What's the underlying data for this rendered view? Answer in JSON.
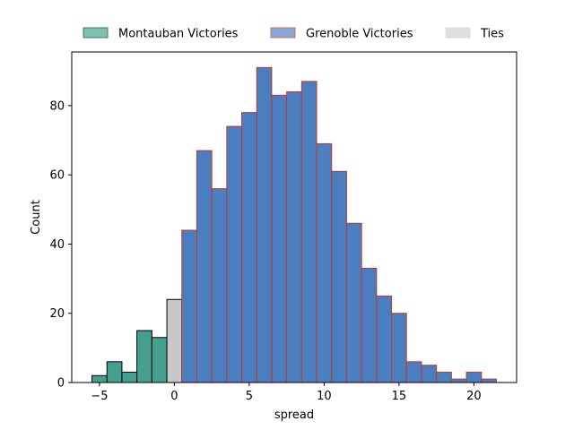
{
  "chart_data": {
    "type": "bar",
    "title": "",
    "xlabel": "spread",
    "ylabel": "Count",
    "xlim": [
      -6.85,
      22.85
    ],
    "ylim": [
      0,
      95.5
    ],
    "bin_width": 1,
    "xticks": [
      -5,
      0,
      5,
      10,
      15,
      20
    ],
    "yticks": [
      0,
      20,
      40,
      60,
      80
    ],
    "grid": false,
    "legend_position": "top-center (outside, above plot)",
    "series": [
      {
        "name": "Montauban Victories",
        "fill": "#44a08c",
        "edge": "#000000",
        "bins": [
          {
            "start": -5.5,
            "count": 2
          },
          {
            "start": -4.5,
            "count": 6
          },
          {
            "start": -3.5,
            "count": 3
          },
          {
            "start": -2.5,
            "count": 15
          },
          {
            "start": -1.5,
            "count": 13
          }
        ]
      },
      {
        "name": "Ties",
        "fill": "#c8c8c8",
        "edge": "#000000",
        "bins": [
          {
            "start": -0.5,
            "count": 24
          }
        ]
      },
      {
        "name": "Grenoble Victories",
        "fill": "#4a7ebf",
        "edge": "#c0392b",
        "bins": [
          {
            "start": 0.5,
            "count": 44
          },
          {
            "start": 1.5,
            "count": 67
          },
          {
            "start": 2.5,
            "count": 56
          },
          {
            "start": 3.5,
            "count": 74
          },
          {
            "start": 4.5,
            "count": 78
          },
          {
            "start": 5.5,
            "count": 91
          },
          {
            "start": 6.5,
            "count": 83
          },
          {
            "start": 7.5,
            "count": 84
          },
          {
            "start": 8.5,
            "count": 87
          },
          {
            "start": 9.5,
            "count": 69
          },
          {
            "start": 10.5,
            "count": 61
          },
          {
            "start": 11.5,
            "count": 46
          },
          {
            "start": 12.5,
            "count": 33
          },
          {
            "start": 13.5,
            "count": 25
          },
          {
            "start": 14.5,
            "count": 20
          },
          {
            "start": 15.5,
            "count": 6
          },
          {
            "start": 16.5,
            "count": 5
          },
          {
            "start": 17.5,
            "count": 3
          },
          {
            "start": 18.5,
            "count": 1
          },
          {
            "start": 19.5,
            "count": 3
          },
          {
            "start": 20.5,
            "count": 1
          }
        ]
      }
    ],
    "legend": [
      {
        "label": "Montauban Victories",
        "fill": "#7cc0ad",
        "edge": "#3d7a6a"
      },
      {
        "label": "Grenoble Victories",
        "fill": "#88a9d6",
        "edge": "#d46a6a"
      },
      {
        "label": "Ties",
        "fill": "#dedede",
        "edge": "#dedede"
      }
    ]
  }
}
